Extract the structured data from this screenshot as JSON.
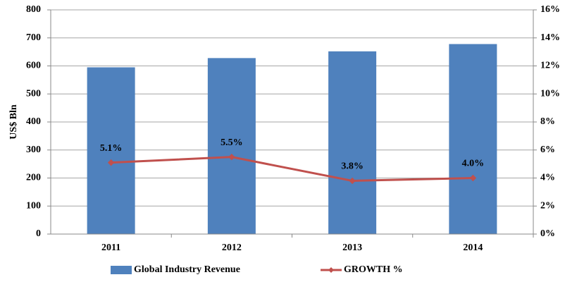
{
  "chart_data": {
    "type": "combo",
    "y_label": "US$ Bln",
    "categories": [
      "2011",
      "2012",
      "2013",
      "2014"
    ],
    "series": [
      {
        "name": "Global Industry Revenue",
        "type": "bar",
        "color": "#4f81bd",
        "values": [
          595,
          628,
          652,
          678
        ]
      },
      {
        "name": "GROWTH %",
        "type": "line",
        "axis": "y2",
        "color": "#c0504d",
        "values": [
          5.1,
          5.5,
          3.8,
          4.0
        ],
        "value_labels": [
          "5.1%",
          "5.5%",
          "3.8%",
          "4.0%"
        ]
      }
    ],
    "ylim": [
      0,
      800
    ],
    "yticks": [
      0,
      100,
      200,
      300,
      400,
      500,
      600,
      700,
      800
    ],
    "y2lim": [
      0,
      16
    ],
    "y2ticks": [
      {
        "value": 0,
        "label": "0%"
      },
      {
        "value": 2,
        "label": "2%"
      },
      {
        "value": 4,
        "label": "4%"
      },
      {
        "value": 6,
        "label": "6%"
      },
      {
        "value": 8,
        "label": "8%"
      },
      {
        "value": 10,
        "label": "10%"
      },
      {
        "value": 12,
        "label": "12%"
      },
      {
        "value": 14,
        "label": "14%"
      },
      {
        "value": 16,
        "label": "16%"
      }
    ],
    "grid": true,
    "legend": "bottom"
  }
}
